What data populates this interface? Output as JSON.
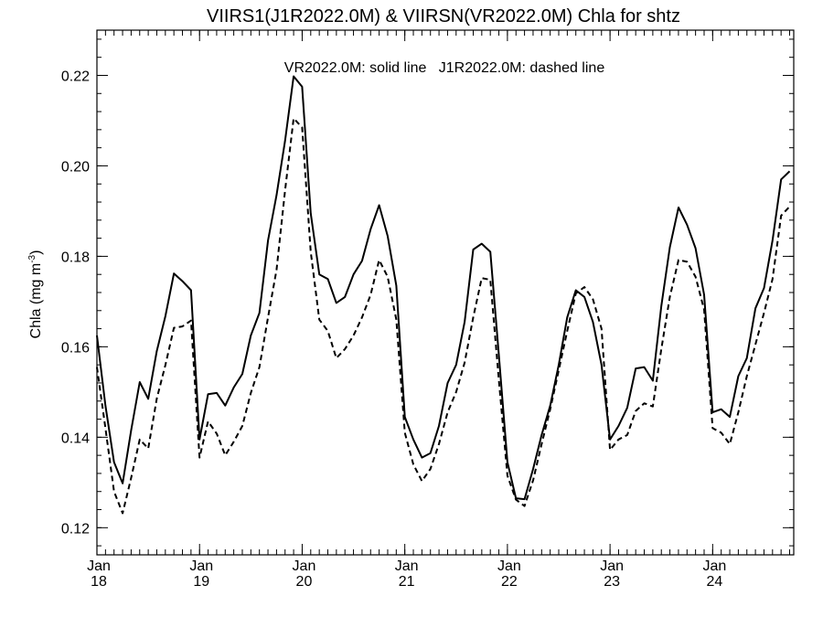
{
  "chart_data": {
    "type": "line",
    "title": "VIIRS1(J1R2022.0M) & VIIRSN(VR2022.0M)  Chla for shtz",
    "annotation": "VR2022.0M: solid line   J1R2022.0M: dashed line",
    "ylabel": "Chla (mg m",
    "ylabel_sup": "-3",
    "ylabel_close": ")",
    "xlabel": "",
    "ylim": [
      0.114,
      0.23
    ],
    "xlim": [
      2018.0,
      2024.79
    ],
    "grid": false,
    "y_ticks": [
      {
        "value": 0.12,
        "label": "0.12"
      },
      {
        "value": 0.14,
        "label": "0.14"
      },
      {
        "value": 0.16,
        "label": "0.16"
      },
      {
        "value": 0.18,
        "label": "0.18"
      },
      {
        "value": 0.2,
        "label": "0.20"
      },
      {
        "value": 0.22,
        "label": "0.22"
      }
    ],
    "x_ticks": [
      {
        "value": 2018,
        "month": "Jan",
        "year": "18"
      },
      {
        "value": 2019,
        "month": "Jan",
        "year": "19"
      },
      {
        "value": 2020,
        "month": "Jan",
        "year": "20"
      },
      {
        "value": 2021,
        "month": "Jan",
        "year": "21"
      },
      {
        "value": 2022,
        "month": "Jan",
        "year": "22"
      },
      {
        "value": 2023,
        "month": "Jan",
        "year": "23"
      },
      {
        "value": 2024,
        "month": "Jan",
        "year": "24"
      }
    ],
    "series": [
      {
        "name": "VR2022.0M",
        "style": "solid",
        "color": "#000000",
        "x": [
          2018.0,
          2018.083,
          2018.167,
          2018.25,
          2018.333,
          2018.417,
          2018.5,
          2018.583,
          2018.667,
          2018.75,
          2018.833,
          2018.917,
          2019.0,
          2019.083,
          2019.167,
          2019.25,
          2019.333,
          2019.417,
          2019.5,
          2019.583,
          2019.667,
          2019.75,
          2019.833,
          2019.917,
          2020.0,
          2020.083,
          2020.167,
          2020.25,
          2020.333,
          2020.417,
          2020.5,
          2020.583,
          2020.667,
          2020.75,
          2020.833,
          2020.917,
          2021.0,
          2021.083,
          2021.167,
          2021.25,
          2021.333,
          2021.417,
          2021.5,
          2021.583,
          2021.667,
          2021.75,
          2021.833,
          2021.917,
          2022.0,
          2022.083,
          2022.167,
          2022.25,
          2022.333,
          2022.417,
          2022.5,
          2022.583,
          2022.667,
          2022.75,
          2022.833,
          2022.917,
          2023.0,
          2023.083,
          2023.167,
          2023.25,
          2023.333,
          2023.417,
          2023.5,
          2023.583,
          2023.667,
          2023.75,
          2023.833,
          2023.917,
          2024.0,
          2024.083,
          2024.167,
          2024.25,
          2024.333,
          2024.417,
          2024.5,
          2024.583,
          2024.667,
          2024.75
        ],
        "y": [
          0.1625,
          0.147,
          0.1345,
          0.1298,
          0.1415,
          0.1522,
          0.1485,
          0.159,
          0.1668,
          0.1762,
          0.1745,
          0.1725,
          0.1395,
          0.1495,
          0.1498,
          0.147,
          0.151,
          0.154,
          0.1625,
          0.1675,
          0.1835,
          0.1935,
          0.2055,
          0.2198,
          0.2175,
          0.1895,
          0.176,
          0.175,
          0.1697,
          0.171,
          0.176,
          0.179,
          0.186,
          0.1913,
          0.1845,
          0.1735,
          0.1445,
          0.1395,
          0.1355,
          0.1365,
          0.1425,
          0.152,
          0.156,
          0.1655,
          0.1815,
          0.1828,
          0.181,
          0.158,
          0.1345,
          0.1265,
          0.1263,
          0.133,
          0.1405,
          0.147,
          0.156,
          0.1665,
          0.1725,
          0.171,
          0.1655,
          0.156,
          0.1395,
          0.1425,
          0.1465,
          0.1552,
          0.1555,
          0.1525,
          0.169,
          0.182,
          0.1908,
          0.187,
          0.1818,
          0.1715,
          0.1455,
          0.1462,
          0.1445,
          0.1535,
          0.1575,
          0.1685,
          0.173,
          0.1835,
          0.197,
          0.1988
        ]
      },
      {
        "name": "J1R2022.0M",
        "style": "dashed",
        "color": "#000000",
        "x": [
          2018.0,
          2018.083,
          2018.167,
          2018.25,
          2018.333,
          2018.417,
          2018.5,
          2018.583,
          2018.667,
          2018.75,
          2018.833,
          2018.917,
          2019.0,
          2019.083,
          2019.167,
          2019.25,
          2019.333,
          2019.417,
          2019.5,
          2019.583,
          2019.667,
          2019.75,
          2019.833,
          2019.917,
          2020.0,
          2020.083,
          2020.167,
          2020.25,
          2020.333,
          2020.417,
          2020.5,
          2020.583,
          2020.667,
          2020.75,
          2020.833,
          2020.917,
          2021.0,
          2021.083,
          2021.167,
          2021.25,
          2021.333,
          2021.417,
          2021.5,
          2021.583,
          2021.667,
          2021.75,
          2021.833,
          2021.917,
          2022.0,
          2022.083,
          2022.167,
          2022.25,
          2022.333,
          2022.417,
          2022.5,
          2022.583,
          2022.667,
          2022.75,
          2022.833,
          2022.917,
          2023.0,
          2023.083,
          2023.167,
          2023.25,
          2023.333,
          2023.417,
          2023.5,
          2023.583,
          2023.667,
          2023.75,
          2023.833,
          2023.917,
          2024.0,
          2024.083,
          2024.167,
          2024.25,
          2024.333,
          2024.417,
          2024.5,
          2024.583,
          2024.667,
          2024.75
        ],
        "y": [
          0.1555,
          0.142,
          0.128,
          0.1232,
          0.131,
          0.1395,
          0.1375,
          0.1485,
          0.156,
          0.1642,
          0.1645,
          0.1658,
          0.1355,
          0.1435,
          0.1408,
          0.136,
          0.139,
          0.1425,
          0.1498,
          0.1555,
          0.1665,
          0.177,
          0.1945,
          0.2105,
          0.2085,
          0.181,
          0.166,
          0.1635,
          0.1575,
          0.1595,
          0.1625,
          0.1665,
          0.1715,
          0.1792,
          0.1755,
          0.166,
          0.141,
          0.134,
          0.1303,
          0.133,
          0.1385,
          0.1455,
          0.15,
          0.1565,
          0.1665,
          0.1752,
          0.1748,
          0.1525,
          0.1315,
          0.1262,
          0.1248,
          0.1305,
          0.1385,
          0.1462,
          0.1548,
          0.1635,
          0.1718,
          0.1732,
          0.1705,
          0.164,
          0.1372,
          0.1395,
          0.1405,
          0.1458,
          0.1475,
          0.1468,
          0.1595,
          0.171,
          0.1792,
          0.1788,
          0.1755,
          0.1682,
          0.142,
          0.141,
          0.1385,
          0.1455,
          0.1535,
          0.1605,
          0.1675,
          0.175,
          0.189,
          0.191
        ]
      }
    ]
  }
}
